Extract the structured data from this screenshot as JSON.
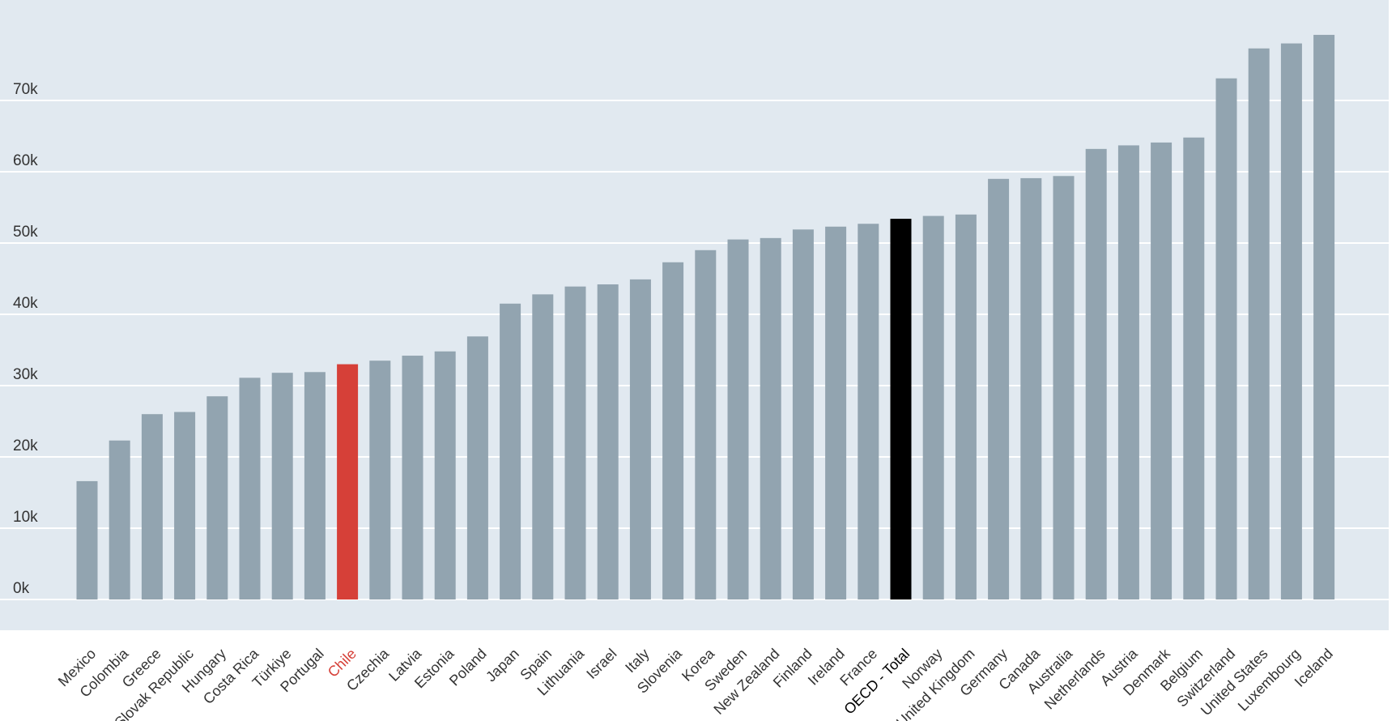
{
  "chart_data": {
    "type": "bar",
    "title": "",
    "xlabel": "",
    "ylabel": "",
    "ylim": [
      0,
      80000
    ],
    "grid": true,
    "legend": "none",
    "y_ticks": [
      {
        "value": 0,
        "label": "0k"
      },
      {
        "value": 10000,
        "label": "10k"
      },
      {
        "value": 20000,
        "label": "20k"
      },
      {
        "value": 30000,
        "label": "30k"
      },
      {
        "value": 40000,
        "label": "40k"
      },
      {
        "value": 50000,
        "label": "50k"
      },
      {
        "value": 60000,
        "label": "60k"
      },
      {
        "value": 70000,
        "label": "70k"
      }
    ],
    "categories": [
      "Mexico",
      "Colombia",
      "Greece",
      "Slovak Republic",
      "Hungary",
      "Costa Rica",
      "Türkiye",
      "Portugal",
      "Chile",
      "Czechia",
      "Latvia",
      "Estonia",
      "Poland",
      "Japan",
      "Spain",
      "Lithuania",
      "Israel",
      "Italy",
      "Slovenia",
      "Korea",
      "Sweden",
      "New Zealand",
      "Finland",
      "Ireland",
      "France",
      "OECD - Total",
      "Norway",
      "United Kingdom",
      "Germany",
      "Canada",
      "Australia",
      "Netherlands",
      "Austria",
      "Denmark",
      "Belgium",
      "Switzerland",
      "United States",
      "Luxembourg",
      "Iceland"
    ],
    "values": [
      16600,
      22300,
      26000,
      26300,
      28500,
      31100,
      31800,
      31900,
      33000,
      33500,
      34200,
      34800,
      36900,
      41500,
      42800,
      43900,
      44200,
      44900,
      47300,
      49000,
      50500,
      50700,
      51900,
      52300,
      52700,
      53400,
      53800,
      54000,
      59000,
      59100,
      59400,
      63200,
      63700,
      64100,
      64800,
      73100,
      77300,
      78000,
      79200
    ],
    "colors": {
      "default": "#92a4b0",
      "highlight": "#d64038",
      "total": "#000000",
      "plot_background": "#e1e9f0",
      "gridline": "#ffffff",
      "label_default": "#333333",
      "label_highlight": "#d64038",
      "label_total": "#000000"
    },
    "highlight_category": "Chile",
    "total_category": "OECD - Total"
  }
}
